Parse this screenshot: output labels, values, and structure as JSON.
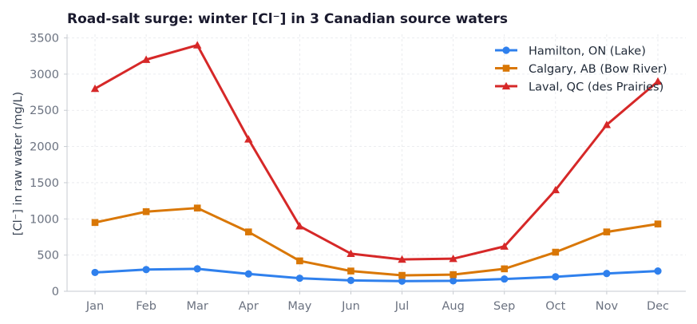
{
  "chart_data": {
    "type": "line",
    "title": "Road-salt surge: winter [Cl⁻] in 3 Canadian source waters",
    "xlabel": "",
    "ylabel": "[Cl⁻] in raw water (mg/L)",
    "categories": [
      "Jan",
      "Feb",
      "Mar",
      "Apr",
      "May",
      "Jun",
      "Jul",
      "Aug",
      "Sep",
      "Oct",
      "Nov",
      "Dec"
    ],
    "ylim": [
      0,
      3550
    ],
    "yticks": [
      0,
      500,
      1000,
      1500,
      2000,
      2500,
      3000,
      3500
    ],
    "grid": true,
    "legend_position": "top-right",
    "series": [
      {
        "name": "Hamilton, ON (Lake)",
        "color": "#2f80ed",
        "marker": "circle",
        "values": [
          260,
          300,
          310,
          240,
          180,
          150,
          140,
          145,
          170,
          200,
          245,
          280
        ]
      },
      {
        "name": "Calgary, AB (Bow River)",
        "color": "#d97706",
        "marker": "square",
        "values": [
          950,
          1100,
          1150,
          820,
          420,
          280,
          220,
          230,
          310,
          540,
          820,
          930
        ]
      },
      {
        "name": "Laval, QC (des Prairies)",
        "color": "#d62828",
        "marker": "triangle",
        "values": [
          2800,
          3200,
          3400,
          2100,
          900,
          520,
          440,
          450,
          620,
          1400,
          2300,
          2900
        ]
      }
    ]
  }
}
